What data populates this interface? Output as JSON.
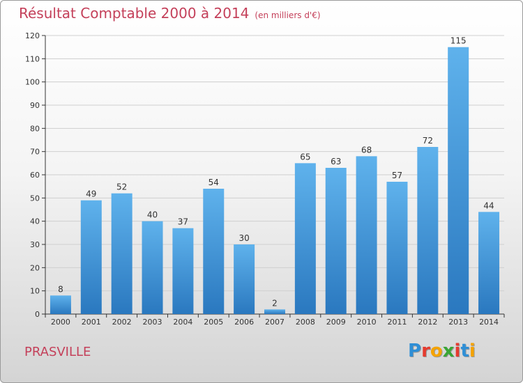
{
  "header": {
    "title": "Résultat Comptable 2000 à 2014",
    "subtitle": "(en milliers d'€)"
  },
  "footer": {
    "commune": "PRASVILLE",
    "logo_text": "Proxiti",
    "logo_colors": [
      "#2f8fd6",
      "#e53b2f",
      "#f5a300",
      "#3aa535",
      "#e53b2f",
      "#2f8fd6",
      "#f5a300"
    ]
  },
  "colors": {
    "title": "#c4405a",
    "bar_top": "#5fb2ec",
    "bar_bottom": "#2a78bf",
    "axis": "#333333",
    "grid": "#cfcfcf"
  },
  "chart_data": {
    "type": "bar",
    "categories": [
      "2000",
      "2001",
      "2002",
      "2003",
      "2004",
      "2005",
      "2006",
      "2007",
      "2008",
      "2009",
      "2010",
      "2011",
      "2012",
      "2013",
      "2014"
    ],
    "values": [
      8,
      49,
      52,
      40,
      37,
      54,
      30,
      2,
      65,
      63,
      68,
      57,
      72,
      115,
      44
    ],
    "data_labels": [
      "8",
      "49",
      "52",
      "40",
      "37",
      "54",
      "30",
      "2",
      "65",
      "63",
      "68",
      "57",
      "72",
      "115",
      "44"
    ],
    "yticks": [
      0,
      10,
      20,
      30,
      40,
      50,
      60,
      70,
      80,
      90,
      100,
      110,
      120
    ],
    "ylim": [
      0,
      120
    ],
    "grid": true,
    "legend": "none"
  }
}
